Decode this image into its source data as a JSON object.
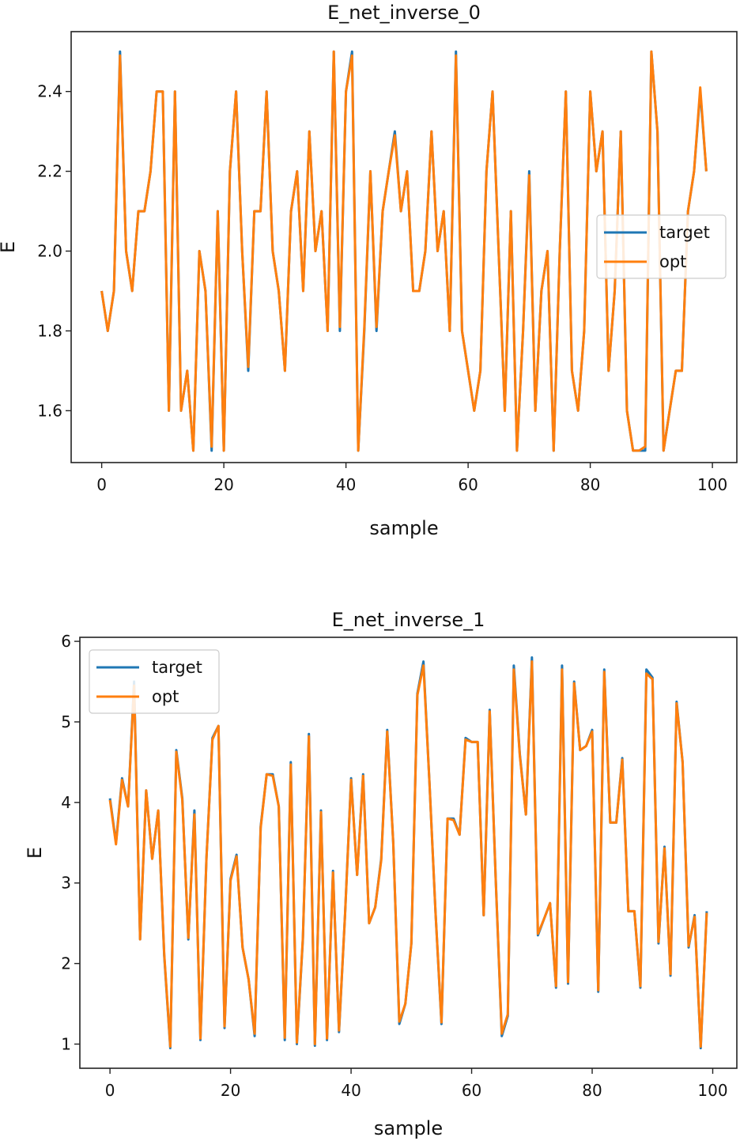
{
  "chart_data": [
    {
      "type": "line",
      "title": "E_net_inverse_0",
      "xlabel": "sample",
      "ylabel": "E",
      "xlim": [
        -5,
        104
      ],
      "ylim": [
        1.47,
        2.55
      ],
      "xticks": [
        0,
        20,
        40,
        60,
        80,
        100
      ],
      "yticks": [
        1.6,
        1.8,
        2.0,
        2.2,
        2.4
      ],
      "ytick_labels": [
        "1.6",
        "1.8",
        "2.0",
        "2.2",
        "2.4"
      ],
      "legend": "center-right",
      "grid": false,
      "x": [
        0,
        1,
        2,
        3,
        4,
        5,
        6,
        7,
        8,
        9,
        10,
        11,
        12,
        13,
        14,
        15,
        16,
        17,
        18,
        19,
        20,
        21,
        22,
        23,
        24,
        25,
        26,
        27,
        28,
        29,
        30,
        31,
        32,
        33,
        34,
        35,
        36,
        37,
        38,
        39,
        40,
        41,
        42,
        43,
        44,
        45,
        46,
        47,
        48,
        49,
        50,
        51,
        52,
        53,
        54,
        55,
        56,
        57,
        58,
        59,
        60,
        61,
        62,
        63,
        64,
        65,
        66,
        67,
        68,
        69,
        70,
        71,
        72,
        73,
        74,
        75,
        76,
        77,
        78,
        79,
        80,
        81,
        82,
        83,
        84,
        85,
        86,
        87,
        88,
        89,
        90,
        91,
        92,
        93,
        94,
        95,
        96,
        97,
        98,
        99
      ],
      "series": [
        {
          "name": "target",
          "color": "#1f77b4",
          "values": [
            1.9,
            1.8,
            1.9,
            2.5,
            2.0,
            1.9,
            2.1,
            2.1,
            2.2,
            2.4,
            2.4,
            1.6,
            2.4,
            1.6,
            1.7,
            1.5,
            2.0,
            1.9,
            1.5,
            2.1,
            1.5,
            2.2,
            2.4,
            2.0,
            1.7,
            2.1,
            2.1,
            2.4,
            2.0,
            1.9,
            1.7,
            2.1,
            2.2,
            1.9,
            2.3,
            2.0,
            2.1,
            1.8,
            2.5,
            1.8,
            2.4,
            2.5,
            1.5,
            1.8,
            2.2,
            1.8,
            2.1,
            2.2,
            2.3,
            2.1,
            2.2,
            1.9,
            1.9,
            2.0,
            2.3,
            2.0,
            2.1,
            1.8,
            2.5,
            1.8,
            1.7,
            1.6,
            1.7,
            2.2,
            2.4,
            2.0,
            1.6,
            2.1,
            1.5,
            1.8,
            2.2,
            1.6,
            1.9,
            2.0,
            1.5,
            2.0,
            2.4,
            1.7,
            1.6,
            1.8,
            2.4,
            2.2,
            2.3,
            1.7,
            1.9,
            2.3,
            1.6,
            1.5,
            1.5,
            1.5,
            2.5,
            2.3,
            1.5,
            1.6,
            1.7,
            1.7,
            2.1,
            2.2,
            2.4,
            2.2
          ]
        },
        {
          "name": "opt",
          "color": "#ff7f0e",
          "values": [
            1.9,
            1.8,
            1.9,
            2.49,
            2.0,
            1.9,
            2.1,
            2.1,
            2.2,
            2.4,
            2.4,
            1.6,
            2.4,
            1.6,
            1.7,
            1.5,
            2.0,
            1.9,
            1.51,
            2.1,
            1.5,
            2.2,
            2.4,
            2.0,
            1.71,
            2.1,
            2.1,
            2.4,
            2.0,
            1.9,
            1.7,
            2.1,
            2.2,
            1.9,
            2.3,
            2.0,
            2.1,
            1.8,
            2.5,
            1.81,
            2.4,
            2.49,
            1.5,
            1.81,
            2.2,
            1.81,
            2.1,
            2.2,
            2.29,
            2.1,
            2.2,
            1.9,
            1.9,
            2.0,
            2.3,
            2.0,
            2.1,
            1.8,
            2.49,
            1.8,
            1.7,
            1.6,
            1.7,
            2.2,
            2.4,
            2.0,
            1.6,
            2.1,
            1.5,
            1.8,
            2.19,
            1.6,
            1.9,
            2.0,
            1.5,
            2.0,
            2.4,
            1.7,
            1.6,
            1.8,
            2.4,
            2.2,
            2.3,
            1.7,
            1.9,
            2.3,
            1.6,
            1.5,
            1.5,
            1.51,
            2.5,
            2.3,
            1.5,
            1.6,
            1.7,
            1.7,
            2.1,
            2.2,
            2.41,
            2.2
          ]
        }
      ]
    },
    {
      "type": "line",
      "title": "E_net_inverse_1",
      "xlabel": "sample",
      "ylabel": "E",
      "xlim": [
        -5,
        104
      ],
      "ylim": [
        0.7,
        6.05
      ],
      "xticks": [
        0,
        20,
        40,
        60,
        80,
        100
      ],
      "yticks": [
        1,
        2,
        3,
        4,
        5,
        6
      ],
      "ytick_labels": [
        "1",
        "2",
        "3",
        "4",
        "5",
        "6"
      ],
      "legend": "top-left",
      "grid": false,
      "x": [
        0,
        1,
        2,
        3,
        4,
        5,
        6,
        7,
        8,
        9,
        10,
        11,
        12,
        13,
        14,
        15,
        16,
        17,
        18,
        19,
        20,
        21,
        22,
        23,
        24,
        25,
        26,
        27,
        28,
        29,
        30,
        31,
        32,
        33,
        34,
        35,
        36,
        37,
        38,
        39,
        40,
        41,
        42,
        43,
        44,
        45,
        46,
        47,
        48,
        49,
        50,
        51,
        52,
        53,
        54,
        55,
        56,
        57,
        58,
        59,
        60,
        61,
        62,
        63,
        64,
        65,
        66,
        67,
        68,
        69,
        70,
        71,
        72,
        73,
        74,
        75,
        76,
        77,
        78,
        79,
        80,
        81,
        82,
        83,
        84,
        85,
        86,
        87,
        88,
        89,
        90,
        91,
        92,
        93,
        94,
        95,
        96,
        97,
        98,
        99
      ],
      "series": [
        {
          "name": "target",
          "color": "#1f77b4",
          "values": [
            4.05,
            3.5,
            4.3,
            3.95,
            5.5,
            2.3,
            4.15,
            3.3,
            3.9,
            2.1,
            0.95,
            4.65,
            4.05,
            2.3,
            3.9,
            1.05,
            3.3,
            4.8,
            4.95,
            1.2,
            3.05,
            3.35,
            2.2,
            1.8,
            1.1,
            3.7,
            4.35,
            4.35,
            3.95,
            1.05,
            4.5,
            1.0,
            2.3,
            4.85,
            0.98,
            3.9,
            1.05,
            3.15,
            1.15,
            2.6,
            4.3,
            3.1,
            4.35,
            2.5,
            2.7,
            3.3,
            4.9,
            3.5,
            1.25,
            1.5,
            2.25,
            5.35,
            5.75,
            4.25,
            2.65,
            1.25,
            3.8,
            3.8,
            3.6,
            4.8,
            4.75,
            4.75,
            2.6,
            5.15,
            3.05,
            1.1,
            1.35,
            5.7,
            4.6,
            3.85,
            5.8,
            2.35,
            2.55,
            2.75,
            1.7,
            5.7,
            1.75,
            5.5,
            4.65,
            4.7,
            4.9,
            1.65,
            5.65,
            3.75,
            3.75,
            4.55,
            2.65,
            2.65,
            1.7,
            5.65,
            5.55,
            2.25,
            3.45,
            1.85,
            5.25,
            4.5,
            2.2,
            2.6,
            0.95,
            2.65
          ]
        },
        {
          "name": "opt",
          "color": "#ff7f0e",
          "values": [
            4.03,
            3.48,
            4.28,
            3.95,
            5.45,
            2.3,
            4.15,
            3.3,
            3.9,
            2.12,
            0.97,
            4.63,
            4.03,
            2.32,
            3.85,
            1.07,
            3.3,
            4.78,
            4.95,
            1.22,
            3.03,
            3.33,
            2.2,
            1.8,
            1.13,
            3.68,
            4.35,
            4.33,
            3.95,
            1.08,
            4.47,
            1.02,
            2.32,
            4.82,
            1.0,
            3.88,
            1.07,
            3.13,
            1.17,
            2.6,
            4.28,
            3.1,
            4.33,
            2.5,
            2.7,
            3.28,
            4.88,
            3.5,
            1.28,
            1.5,
            2.25,
            5.33,
            5.7,
            4.25,
            2.65,
            1.27,
            3.8,
            3.78,
            3.6,
            4.78,
            4.75,
            4.75,
            2.6,
            5.13,
            3.05,
            1.13,
            1.37,
            5.65,
            4.58,
            3.85,
            5.75,
            2.37,
            2.55,
            2.75,
            1.72,
            5.65,
            1.77,
            5.48,
            4.65,
            4.7,
            4.88,
            1.67,
            5.62,
            3.75,
            3.75,
            4.53,
            2.65,
            2.65,
            1.72,
            5.6,
            5.53,
            2.27,
            3.43,
            1.87,
            5.23,
            4.5,
            2.22,
            2.58,
            0.97,
            2.63
          ]
        }
      ]
    }
  ]
}
